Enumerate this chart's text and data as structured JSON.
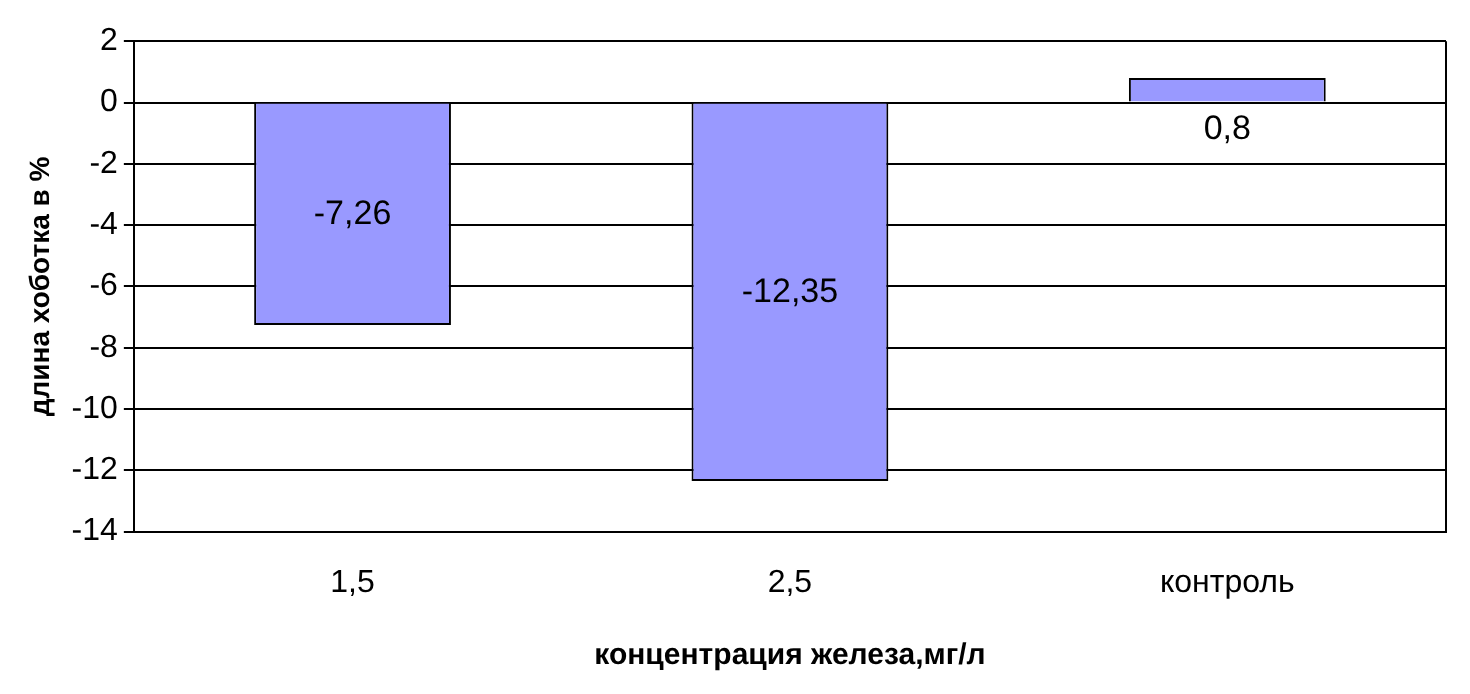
{
  "chart_data": {
    "type": "bar",
    "xlabel": "концентрация железа,мг/л",
    "ylabel": "длина хоботка в %",
    "categories": [
      "1,5",
      "2,5",
      "контроль"
    ],
    "values": [
      -7.26,
      -12.35,
      0.8
    ],
    "value_labels": [
      "-7,26",
      "-12,35",
      "0,8"
    ],
    "color": "#9999ff",
    "ylim": [
      -14,
      2
    ],
    "yticks": [
      -14,
      -12,
      -10,
      -8,
      -6,
      -4,
      -2,
      0,
      2
    ],
    "grid": "y"
  }
}
